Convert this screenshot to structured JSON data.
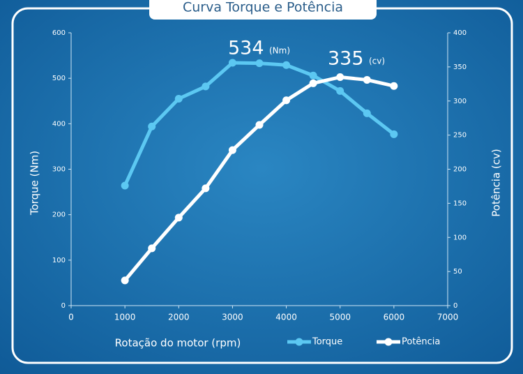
{
  "chart_data": {
    "type": "line",
    "title": "Curva Torque e Potência",
    "x_label": "Rotação do motor (rpm)",
    "y_label": "Torque (Nm)",
    "y2_label": "Potência (cv)",
    "x": [
      1000,
      1500,
      2000,
      2500,
      3000,
      3500,
      4000,
      4500,
      5000,
      5500,
      6000
    ],
    "xlim": [
      0,
      7000
    ],
    "xticks": [
      0,
      1000,
      2000,
      3000,
      4000,
      5000,
      6000,
      7000
    ],
    "ylim": [
      0,
      600
    ],
    "yticks": [
      0,
      100,
      200,
      300,
      400,
      500,
      600
    ],
    "y2lim": [
      0,
      400
    ],
    "y2ticks": [
      0,
      50,
      100,
      150,
      200,
      250,
      300,
      350,
      400
    ],
    "series": [
      {
        "name": "Torque",
        "color": "#5cc8f2",
        "values": [
          264,
          394,
          455,
          482,
          534,
          533,
          529,
          506,
          472,
          423,
          377
        ]
      },
      {
        "name": "Potência",
        "color": "#ffffff",
        "axis": "y2",
        "values": [
          37,
          84,
          129,
          172,
          228,
          265,
          301,
          326,
          335,
          331,
          322
        ]
      }
    ],
    "annotations": [
      {
        "text": "534",
        "unit": "(Nm)"
      },
      {
        "text": "335",
        "unit": "(cv)"
      }
    ]
  }
}
